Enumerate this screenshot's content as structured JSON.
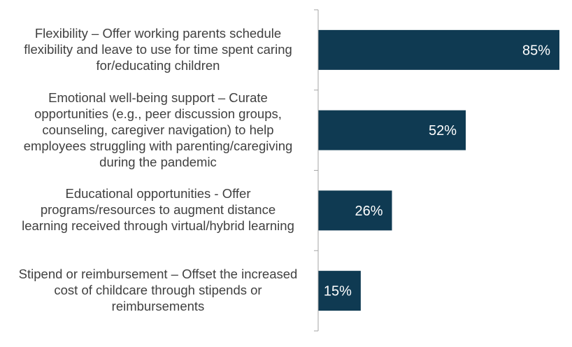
{
  "chart_data": {
    "type": "bar",
    "orientation": "horizontal",
    "categories": [
      "Flexibility – Offer working parents schedule flexibility and leave to use for time spent caring for/educating children",
      "Emotional well-being support – Curate opportunities (e.g., peer discussion groups, counseling, caregiver navigation) to help employees struggling with parenting/caregiving during the pandemic",
      "Educational opportunities - Offer programs/resources to augment distance learning received through virtual/hybrid learning",
      "Stipend or reimbursement – Offset the increased cost of childcare through stipends or reimbursements"
    ],
    "category_lines": [
      [
        "Flexibility – Offer working parents schedule",
        "flexibility and leave to use for time spent caring",
        "for/educating children"
      ],
      [
        "Emotional well-being support – Curate",
        "opportunities (e.g., peer discussion groups,",
        "counseling, caregiver navigation) to help",
        "employees struggling with parenting/caregiving",
        "during the pandemic"
      ],
      [
        "Educational opportunities - Offer",
        "programs/resources to augment distance",
        "learning received through virtual/hybrid learning"
      ],
      [
        "Stipend or reimbursement – Offset the increased",
        "cost of childcare through stipends or",
        "reimbursements"
      ]
    ],
    "values": [
      85,
      52,
      26,
      15
    ],
    "data_labels": [
      "85%",
      "52%",
      "26%",
      "15%"
    ],
    "xlim": [
      0,
      85
    ],
    "grid": false,
    "legend": "none",
    "bar_color": "#0f3a52",
    "label_color": "#ffffff",
    "category_text_color": "#404040",
    "axis_color": "#a6a6a6"
  }
}
